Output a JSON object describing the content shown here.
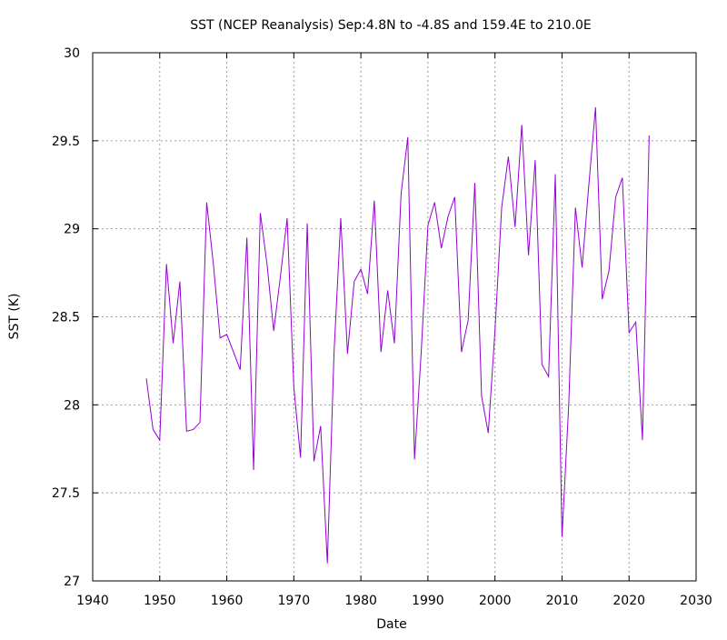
{
  "chart_data": {
    "type": "line",
    "title": "SST (NCEP Reanalysis) Sep:4.8N to -4.8S and 159.4E to 210.0E",
    "xlabel": "Date",
    "ylabel": "SST (K)",
    "xlim": [
      1940,
      2030
    ],
    "ylim": [
      27,
      30
    ],
    "xticks": [
      "1940",
      "1950",
      "1960",
      "1970",
      "1980",
      "1990",
      "2000",
      "2010",
      "2020",
      "2030"
    ],
    "yticks": [
      "27",
      "27.5",
      "28",
      "28.5",
      "29",
      "29.5",
      "30"
    ],
    "grid": true,
    "series": [
      {
        "color": "#9400d3",
        "x": [
          1948,
          1949,
          1950,
          1951,
          1952,
          1953,
          1954,
          1955,
          1956,
          1957,
          1958,
          1959,
          1960,
          1961,
          1962,
          1963,
          1964,
          1965,
          1966,
          1967,
          1968,
          1969,
          1970,
          1971,
          1972,
          1973,
          1974,
          1975,
          1976,
          1977,
          1978,
          1979,
          1980,
          1981,
          1982,
          1983,
          1984,
          1985,
          1986,
          1987,
          1988,
          1989,
          1990,
          1991,
          1992,
          1993,
          1994,
          1995,
          1996,
          1997,
          1998,
          1999,
          2000,
          2001,
          2002,
          2003,
          2004,
          2005,
          2006,
          2007,
          2008,
          2009,
          2010,
          2011,
          2012,
          2013,
          2014,
          2015,
          2016,
          2017,
          2018,
          2019,
          2020,
          2021,
          2022,
          2023
        ],
        "y": [
          28.15,
          27.86,
          27.8,
          28.8,
          28.35,
          28.7,
          27.85,
          27.86,
          27.9,
          29.15,
          28.8,
          28.38,
          28.4,
          28.3,
          28.2,
          28.95,
          27.63,
          29.09,
          28.8,
          28.42,
          28.73,
          29.06,
          28.1,
          27.7,
          29.03,
          27.68,
          27.88,
          27.1,
          28.3,
          29.06,
          28.29,
          28.7,
          28.77,
          28.63,
          29.16,
          28.3,
          28.65,
          28.35,
          29.2,
          29.52,
          27.69,
          28.3,
          29.02,
          29.15,
          28.89,
          29.07,
          29.18,
          28.3,
          28.48,
          29.26,
          28.05,
          27.84,
          28.42,
          29.12,
          29.41,
          29.01,
          29.59,
          28.85,
          29.39,
          28.23,
          28.16,
          29.31,
          27.25,
          28.0,
          29.12,
          28.78,
          29.25,
          29.69,
          28.6,
          28.76,
          29.18,
          29.29,
          28.41,
          28.47,
          27.8,
          29.53
        ]
      }
    ]
  }
}
